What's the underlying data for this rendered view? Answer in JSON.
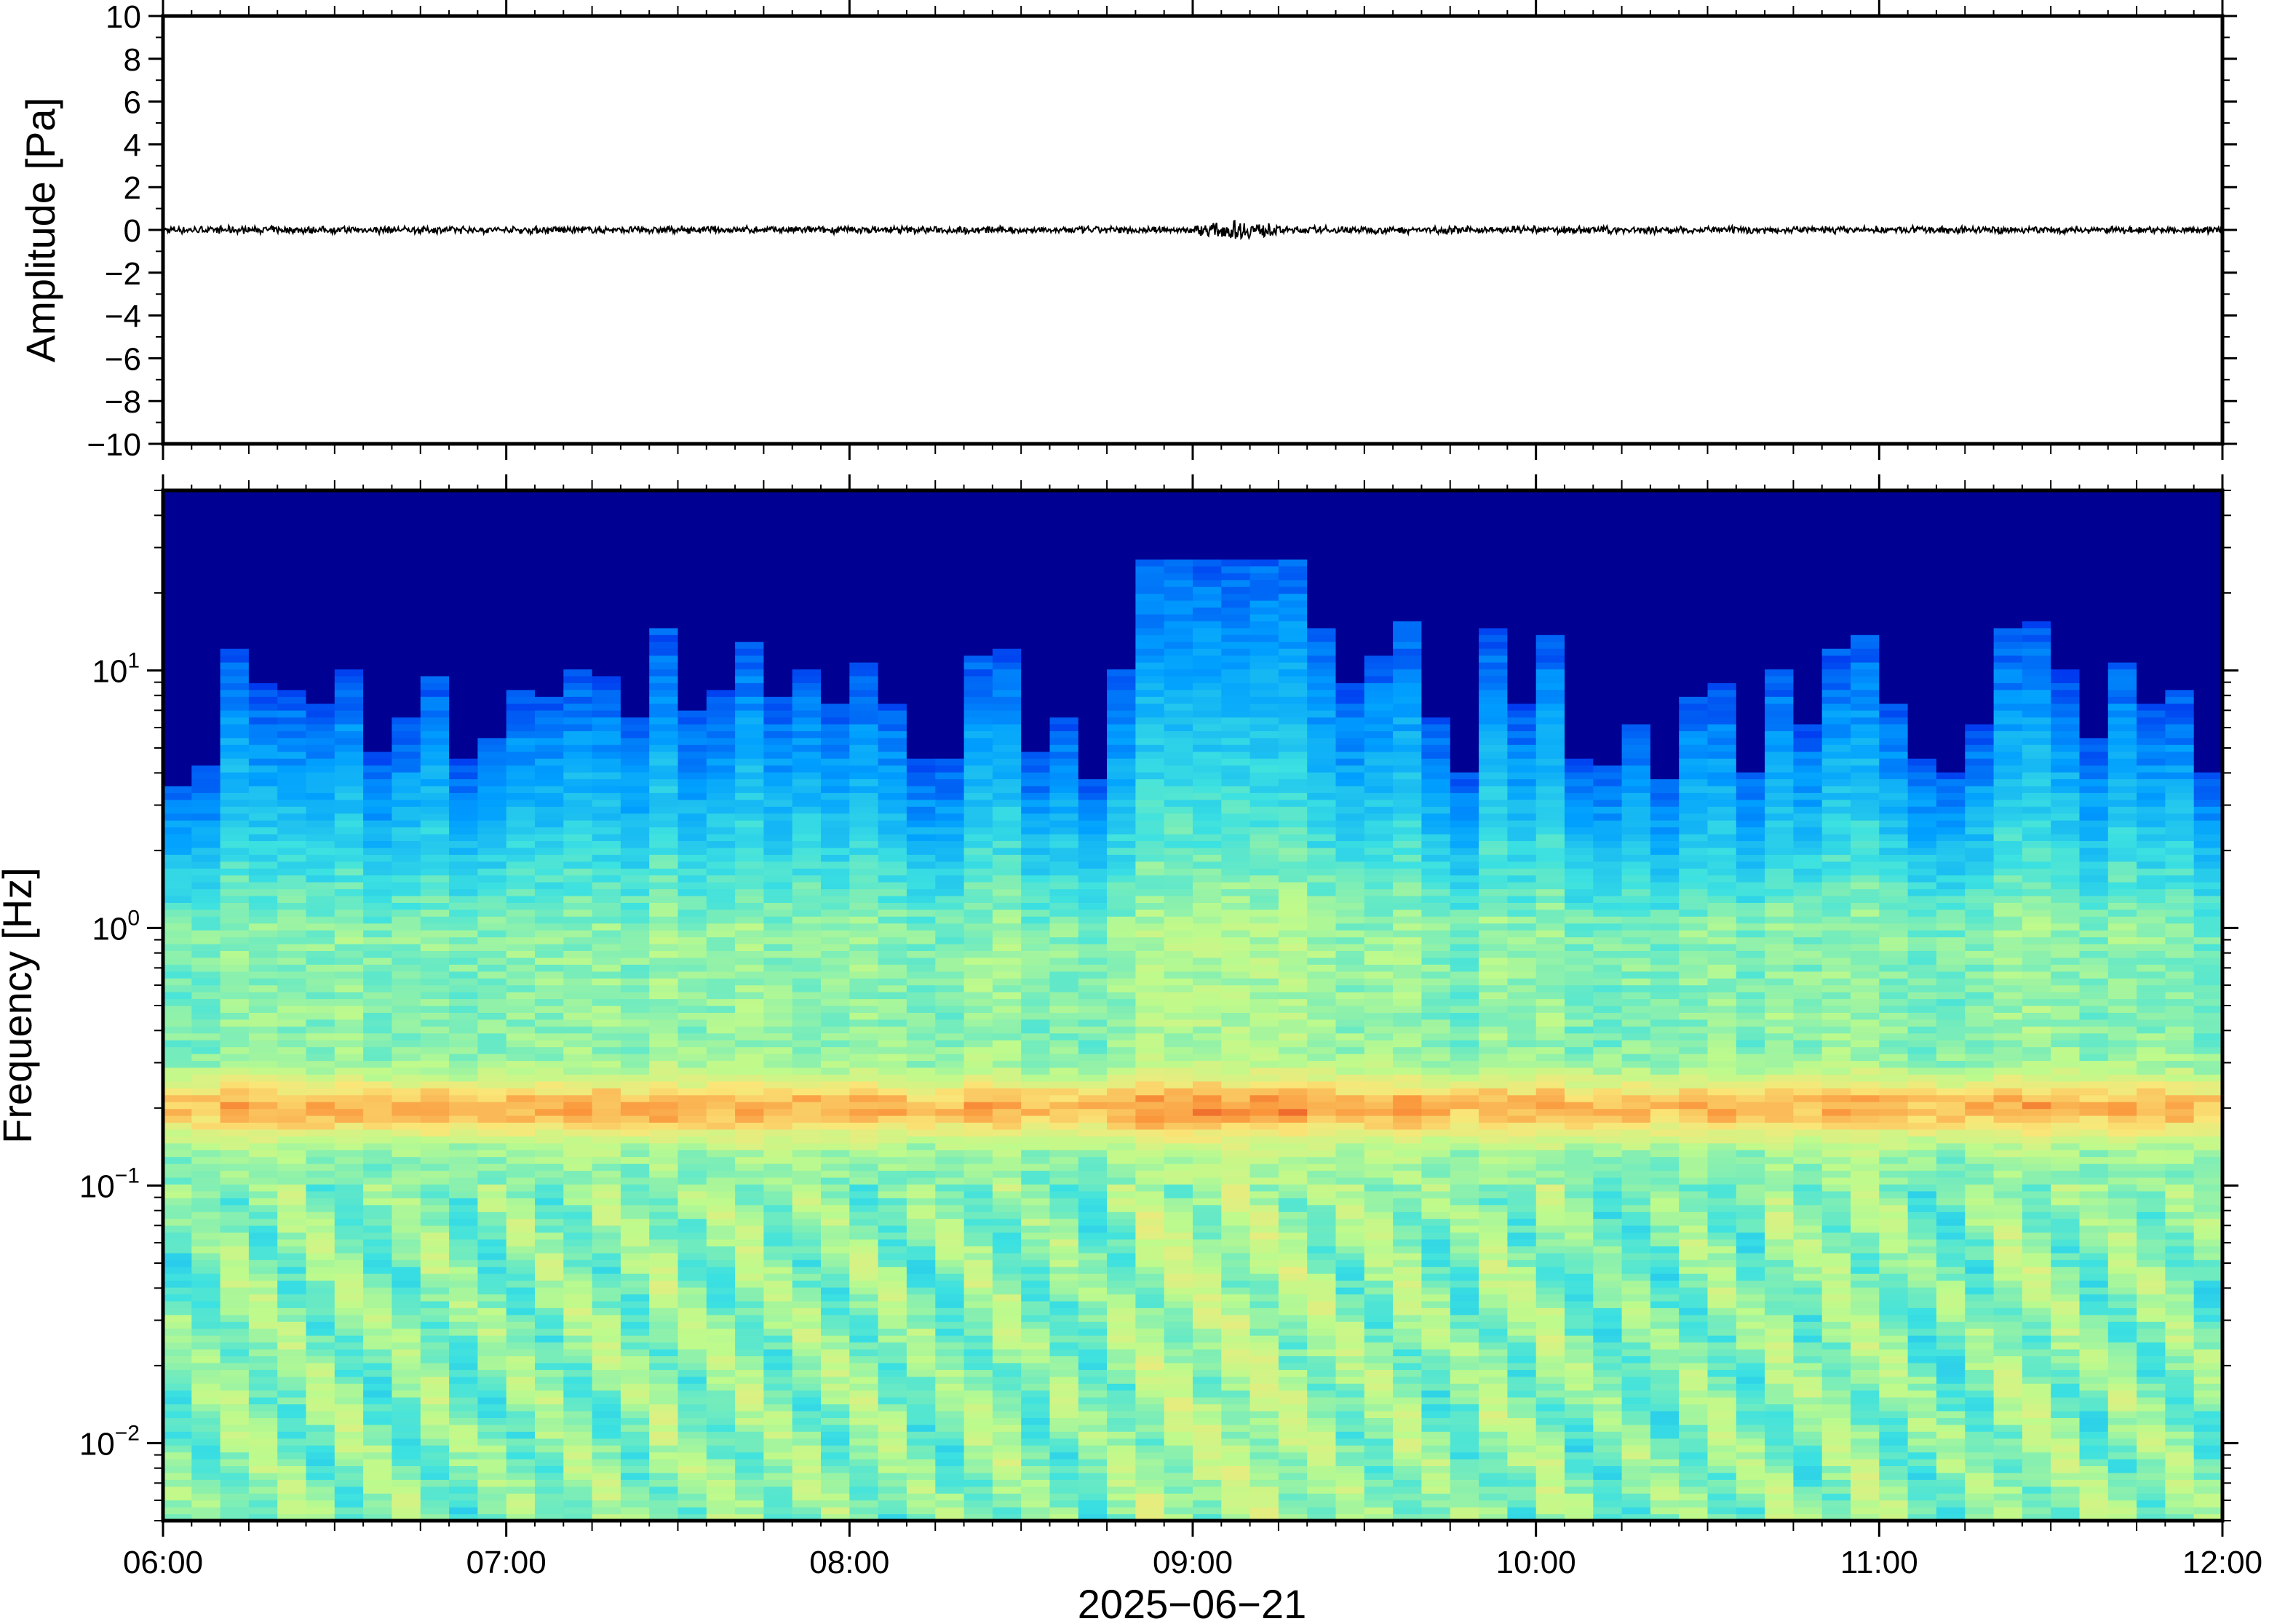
{
  "chart_data": [
    {
      "type": "line",
      "panel": "waveform",
      "ylabel": "Amplitude [Pa]",
      "ylim": [
        -10,
        10
      ],
      "yticks": [
        10,
        8,
        6,
        4,
        2,
        0,
        -2,
        -4,
        -6,
        -8,
        -10
      ],
      "ytick_labels": [
        "10",
        "8",
        "6",
        "4",
        "2",
        "0",
        "−2",
        "−4",
        "−6",
        "−8",
        "−10"
      ],
      "xlim": [
        "06:00",
        "12:00"
      ],
      "series": [
        {
          "baseline": 0,
          "typical_abs_amplitude": 0.2,
          "peak": {
            "time": "09:08",
            "abs_amplitude": 0.5
          },
          "color": "#000000"
        }
      ]
    },
    {
      "type": "heatmap",
      "panel": "spectrogram",
      "ylabel": "Frequency [Hz]",
      "y_scale": "log",
      "ylim": [
        0.005,
        50
      ],
      "yticks": [
        {
          "value": 10,
          "base": "10",
          "exp": "1"
        },
        {
          "value": 1,
          "base": "10",
          "exp": "0"
        },
        {
          "value": 0.1,
          "base": "10",
          "exp": "−1"
        },
        {
          "value": 0.01,
          "base": "10",
          "exp": "−2"
        }
      ],
      "xlabel": "2025−06−21",
      "xticks": [
        "06:00",
        "07:00",
        "08:00",
        "09:00",
        "10:00",
        "11:00",
        "12:00"
      ],
      "x_hours": [
        6,
        12
      ],
      "colormap": "jet",
      "colors": {
        "background": "#0a0478",
        "low": "#0a20e0",
        "mid": "#40c8f0",
        "high": "#f0e070",
        "peak": "#f0a040"
      },
      "features": [
        {
          "description": "ocean microseism band",
          "frequency_hz": 0.2
        },
        {
          "description": "broadband energy rise",
          "time": "09:05",
          "max_frequency_hz": 16
        }
      ]
    }
  ]
}
